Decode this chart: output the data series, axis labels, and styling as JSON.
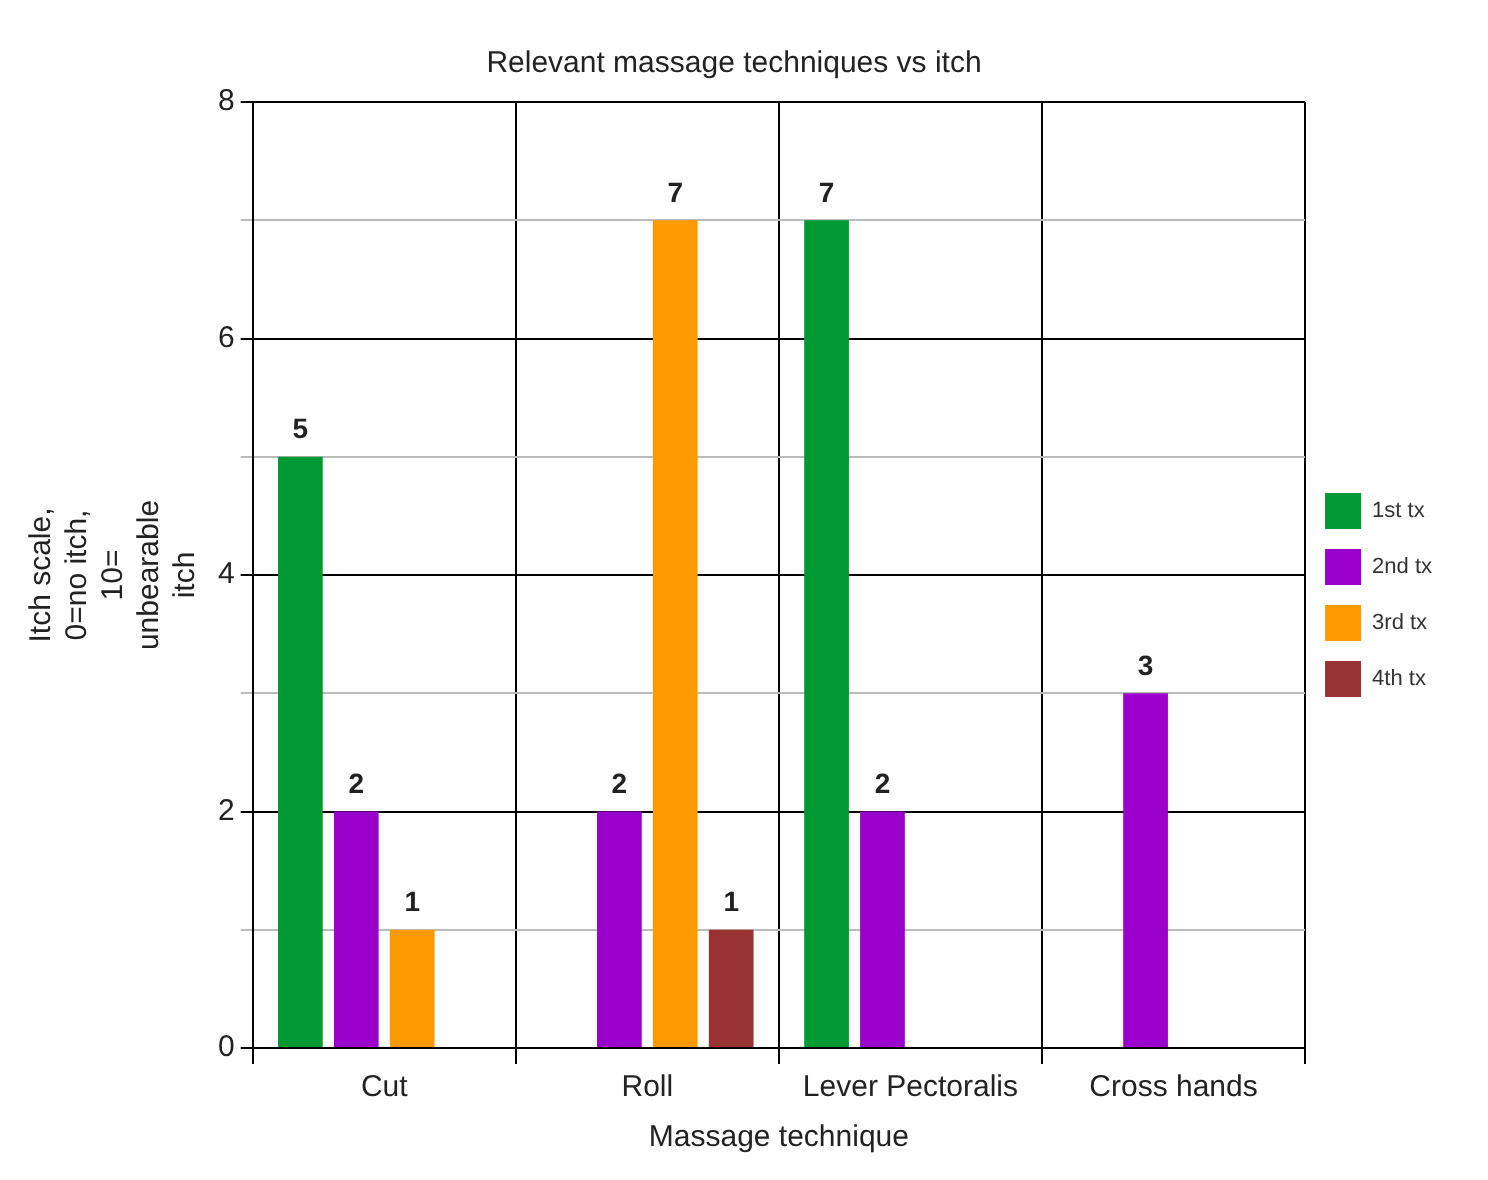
{
  "chart_data": {
    "type": "bar",
    "title": "Relevant massage techniques vs itch",
    "xlabel": "Massage technique",
    "ylabel": "Itch scale, 0=no itch, 10= unbearable itch",
    "categories": [
      "Cut",
      "Roll",
      "Lever Pectoralis",
      "Cross hands"
    ],
    "series": [
      {
        "name": "1st tx",
        "color": "#009933",
        "values": [
          5,
          null,
          7,
          null
        ]
      },
      {
        "name": "2nd tx",
        "color": "#9900cc",
        "values": [
          2,
          2,
          2,
          3
        ]
      },
      {
        "name": "3rd tx",
        "color": "#ff9900",
        "values": [
          1,
          7,
          null,
          null
        ]
      },
      {
        "name": "4th tx",
        "color": "#993333",
        "values": [
          null,
          1,
          null,
          null
        ]
      }
    ],
    "ylim": [
      0,
      8
    ],
    "yticks": [
      0,
      {
        "value": 1,
        "label": null
      },
      2,
      {
        "value": 3,
        "label": null
      },
      4,
      {
        "value": 5,
        "label": null
      },
      6,
      {
        "value": 7,
        "label": null
      },
      8
    ],
    "grid": true,
    "legend": "right",
    "data_labels": true
  }
}
